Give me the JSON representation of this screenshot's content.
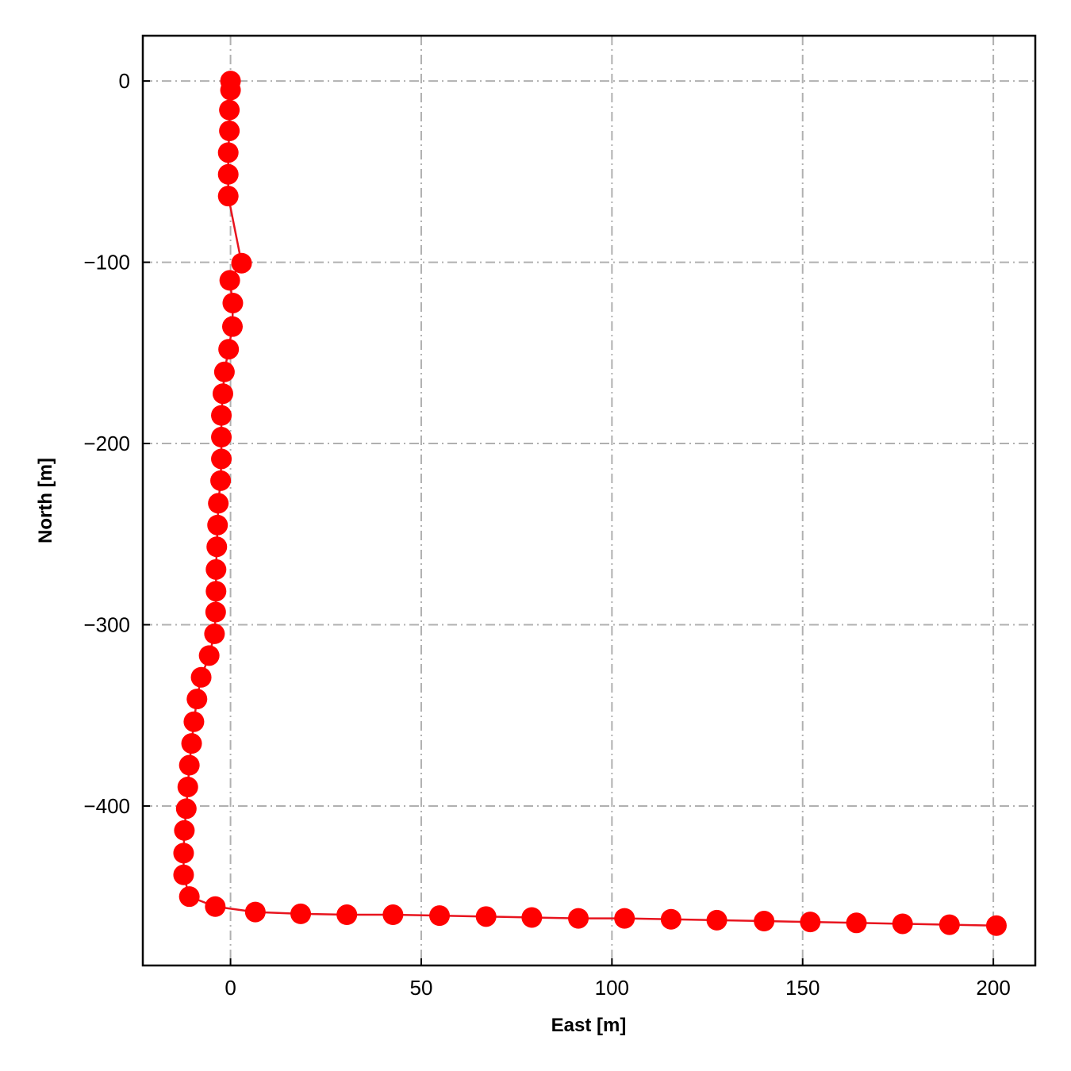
{
  "chart_data": {
    "type": "line",
    "title": "",
    "xlabel": "East [m]",
    "ylabel": "North [m]",
    "xlim": [
      -23,
      211
    ],
    "ylim": [
      -488,
      25
    ],
    "grid": true,
    "legend": "none",
    "xticks": [
      0,
      50,
      100,
      150,
      200
    ],
    "xtick_labels": [
      "0",
      "50",
      "100",
      "150",
      "200"
    ],
    "yticks": [
      0,
      -100,
      -200,
      -300,
      -400
    ],
    "ytick_labels": [
      "0",
      "−100",
      "−200",
      "−300",
      "−400"
    ],
    "series": [
      {
        "color": "#ff0000",
        "line_color": "#e8141e",
        "marker": "circle",
        "points": [
          [
            0.0,
            0.0
          ],
          [
            0.0,
            -5.0
          ],
          [
            -0.3,
            -16.0
          ],
          [
            -0.3,
            -27.5
          ],
          [
            -0.6,
            -39.5
          ],
          [
            -0.6,
            -51.5
          ],
          [
            -0.6,
            -63.5
          ],
          [
            2.9,
            -100.5
          ],
          [
            -0.2,
            -110.0
          ],
          [
            0.6,
            -122.5
          ],
          [
            0.5,
            -135.5
          ],
          [
            -0.5,
            -148.0
          ],
          [
            -1.6,
            -160.5
          ],
          [
            -2.0,
            -172.5
          ],
          [
            -2.4,
            -184.5
          ],
          [
            -2.4,
            -196.5
          ],
          [
            -2.4,
            -208.5
          ],
          [
            -2.6,
            -220.5
          ],
          [
            -3.2,
            -233.0
          ],
          [
            -3.4,
            -245.0
          ],
          [
            -3.6,
            -257.0
          ],
          [
            -3.8,
            -269.5
          ],
          [
            -3.8,
            -281.5
          ],
          [
            -3.9,
            -293.0
          ],
          [
            -4.2,
            -305.0
          ],
          [
            -5.6,
            -317.0
          ],
          [
            -7.7,
            -329.0
          ],
          [
            -8.8,
            -341.0
          ],
          [
            -9.6,
            -353.5
          ],
          [
            -10.2,
            -365.5
          ],
          [
            -10.8,
            -377.5
          ],
          [
            -11.2,
            -389.5
          ],
          [
            -11.6,
            -401.5
          ],
          [
            -12.1,
            -413.5
          ],
          [
            -12.3,
            -426.0
          ],
          [
            -12.3,
            -438.0
          ],
          [
            -10.8,
            -450.0
          ],
          [
            -4.0,
            -455.5
          ],
          [
            6.5,
            -458.5
          ],
          [
            18.4,
            -459.5
          ],
          [
            30.5,
            -460.0
          ],
          [
            42.6,
            -460.0
          ],
          [
            54.8,
            -460.5
          ],
          [
            67.0,
            -461.0
          ],
          [
            79.0,
            -461.5
          ],
          [
            91.2,
            -462.0
          ],
          [
            103.3,
            -462.0
          ],
          [
            115.5,
            -462.5
          ],
          [
            127.5,
            -463.0
          ],
          [
            139.9,
            -463.5
          ],
          [
            152.0,
            -464.0
          ],
          [
            164.1,
            -464.5
          ],
          [
            176.2,
            -465.0
          ],
          [
            188.5,
            -465.5
          ],
          [
            200.8,
            -466.0
          ]
        ]
      }
    ]
  }
}
